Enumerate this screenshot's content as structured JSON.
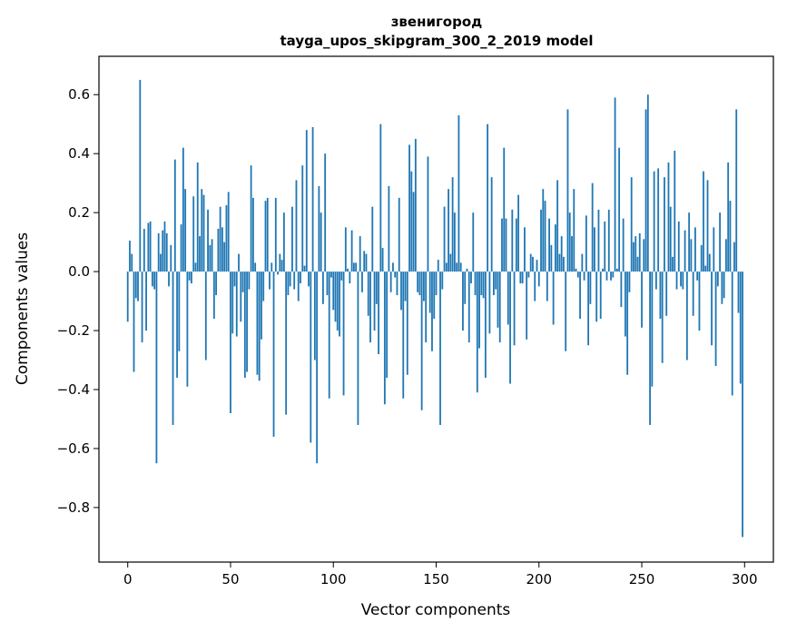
{
  "chart_data": {
    "type": "bar",
    "title": "звенигород",
    "subtitle": "tayga_upos_skipgram_300_2_2019 model",
    "xlabel": "Vector components",
    "ylabel": "Components values",
    "xlim": [
      -14,
      314
    ],
    "ylim": [
      -0.985,
      0.73
    ],
    "xticks": [
      0,
      50,
      100,
      150,
      200,
      250,
      300
    ],
    "yticks": [
      -0.8,
      -0.6,
      -0.4,
      -0.2,
      0.0,
      0.2,
      0.4,
      0.6
    ],
    "ytick_labels": [
      "−0.8",
      "−0.6",
      "−0.4",
      "−0.2",
      "0.0",
      "0.2",
      "0.4",
      "0.6"
    ],
    "bar_color": "#1f77b4",
    "grid": false,
    "x": "0..299",
    "values": [
      -0.17,
      0.105,
      0.06,
      -0.34,
      -0.09,
      -0.1,
      0.65,
      -0.24,
      0.145,
      -0.2,
      0.165,
      0.17,
      -0.05,
      -0.06,
      -0.65,
      0.13,
      0.06,
      0.14,
      0.17,
      0.13,
      -0.05,
      0.09,
      -0.52,
      0.38,
      -0.36,
      -0.27,
      0.16,
      0.42,
      0.28,
      -0.39,
      -0.03,
      -0.04,
      0.255,
      0.03,
      0.37,
      0.12,
      0.28,
      0.26,
      -0.3,
      0.21,
      0.09,
      0.11,
      -0.16,
      -0.08,
      0.145,
      0.22,
      0.15,
      0.1,
      0.225,
      0.27,
      -0.48,
      -0.21,
      -0.05,
      -0.22,
      0.06,
      -0.17,
      -0.07,
      -0.36,
      -0.34,
      -0.06,
      0.36,
      0.25,
      0.03,
      -0.35,
      -0.37,
      -0.23,
      -0.1,
      0.24,
      0.25,
      -0.06,
      0.03,
      -0.56,
      0.25,
      -0.01,
      0.06,
      0.04,
      0.2,
      -0.485,
      -0.08,
      -0.05,
      0.22,
      -0.06,
      0.31,
      -0.1,
      -0.04,
      0.36,
      0.02,
      0.48,
      -0.05,
      -0.58,
      0.49,
      -0.3,
      -0.65,
      0.29,
      0.2,
      -0.11,
      0.4,
      -0.08,
      -0.43,
      -0.02,
      -0.13,
      -0.17,
      -0.2,
      -0.22,
      -0.03,
      -0.42,
      0.15,
      0.01,
      -0.04,
      0.14,
      0.03,
      0.03,
      -0.52,
      0.12,
      -0.07,
      0.07,
      0.06,
      -0.15,
      -0.24,
      0.22,
      -0.2,
      -0.11,
      -0.28,
      0.5,
      0.08,
      -0.45,
      -0.36,
      0.29,
      -0.07,
      0.03,
      -0.02,
      -0.08,
      0.25,
      -0.13,
      -0.43,
      -0.1,
      -0.35,
      0.43,
      0.34,
      0.27,
      0.45,
      -0.07,
      -0.08,
      -0.47,
      -0.1,
      -0.24,
      0.39,
      -0.14,
      -0.27,
      -0.16,
      -0.08,
      0.04,
      -0.52,
      -0.06,
      0.22,
      0.03,
      0.28,
      0.06,
      0.32,
      0.2,
      0.03,
      0.53,
      0.03,
      -0.2,
      -0.11,
      0.01,
      -0.24,
      -0.04,
      0.2,
      -0.08,
      -0.41,
      -0.26,
      -0.08,
      -0.09,
      -0.36,
      0.5,
      -0.21,
      0.32,
      -0.08,
      -0.06,
      -0.19,
      -0.24,
      0.18,
      0.42,
      0.18,
      -0.18,
      -0.38,
      0.21,
      -0.25,
      0.18,
      0.26,
      -0.04,
      -0.04,
      0.15,
      -0.23,
      -0.02,
      0.06,
      0.05,
      -0.1,
      0.04,
      -0.05,
      0.21,
      0.28,
      0.24,
      -0.1,
      0.18,
      0.09,
      -0.18,
      0.16,
      0.31,
      0.06,
      0.12,
      0.05,
      -0.27,
      0.55,
      0.2,
      0.12,
      0.28,
      0.01,
      -0.02,
      -0.16,
      0.06,
      -0.03,
      0.19,
      -0.25,
      -0.11,
      0.3,
      0.15,
      -0.17,
      0.21,
      -0.16,
      0.01,
      0.17,
      -0.03,
      0.21,
      -0.03,
      -0.02,
      0.59,
      0.01,
      0.42,
      -0.12,
      0.18,
      -0.22,
      -0.35,
      -0.07,
      0.32,
      0.1,
      0.12,
      0.05,
      0.13,
      -0.19,
      0.11,
      0.55,
      0.6,
      -0.52,
      -0.39,
      0.34,
      -0.06,
      0.35,
      -0.16,
      -0.31,
      0.32,
      -0.15,
      0.37,
      0.22,
      0.05,
      0.41,
      -0.06,
      0.17,
      -0.05,
      -0.06,
      0.14,
      -0.3,
      0.2,
      0.11,
      -0.15,
      0.15,
      -0.03,
      -0.2,
      0.09,
      0.34,
      0.02,
      0.31,
      0.06,
      -0.25,
      0.15,
      -0.32,
      -0.05,
      0.2,
      -0.11,
      -0.09,
      0.11,
      0.37,
      0.24,
      -0.42,
      0.1,
      0.55,
      -0.14,
      -0.38,
      -0.9
    ]
  }
}
